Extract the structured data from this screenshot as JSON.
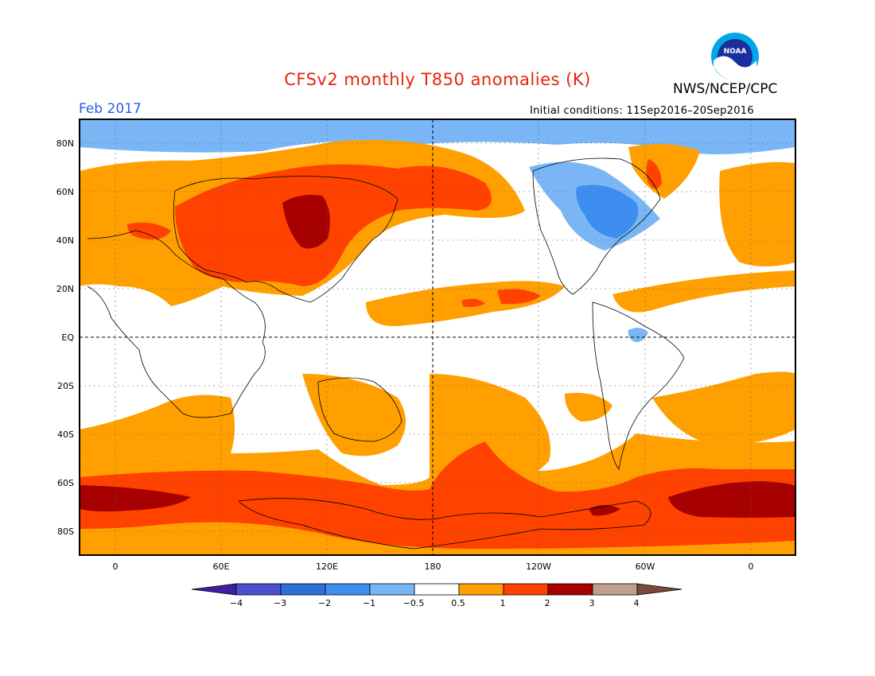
{
  "title": "CFSv2 monthly T850 anomalies (K)",
  "agency": "NWS/NCEP/CPC",
  "valid_month": "Feb 2017",
  "initial_conditions": "Initial conditions: 11Sep2016–20Sep2016",
  "logo_text": "NOAA",
  "lat_labels": [
    "80N",
    "60N",
    "40N",
    "20N",
    "EQ",
    "20S",
    "40S",
    "60S",
    "80S"
  ],
  "lon_labels": [
    "0",
    "60E",
    "120E",
    "180",
    "120W",
    "60W",
    "0"
  ],
  "colorbar": {
    "labels": [
      "−4",
      "−3",
      "−2",
      "−1",
      "−0.5",
      "0.5",
      "1",
      "2",
      "3",
      "4"
    ],
    "colors": [
      "#3d1fa3",
      "#4b4fd0",
      "#2d6fd6",
      "#3e8df0",
      "#7ab6f5",
      "#ffffff",
      "#ffa000",
      "#ff4200",
      "#a60000",
      "#c0a08c",
      "#7a4a3a"
    ]
  },
  "colors": {
    "title": "#e8230f",
    "valid_month": "#2a5de8",
    "cold_1": "#7ab6f5",
    "cold_2": "#3e8df0",
    "warm_1": "#ffa000",
    "warm_2": "#ff4200",
    "warm_3": "#a60000"
  }
}
